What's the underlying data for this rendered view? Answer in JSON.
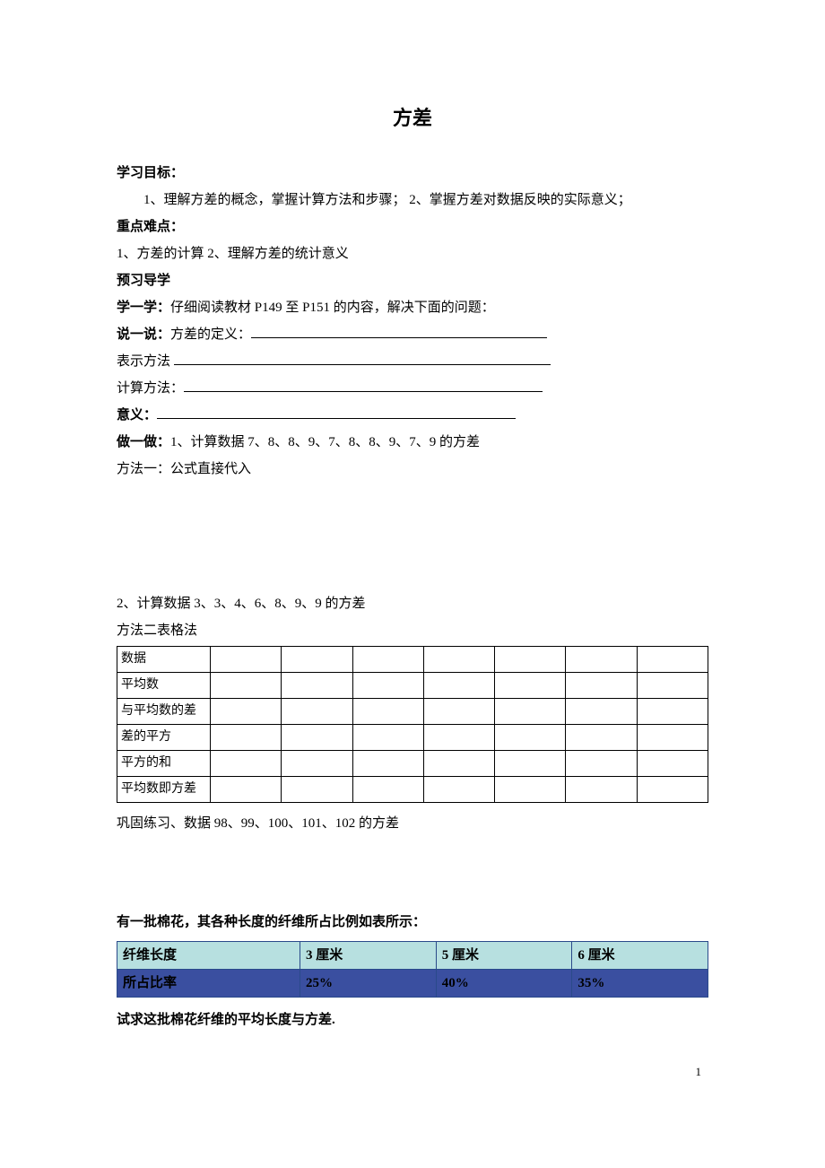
{
  "title": "方差",
  "sections": {
    "goal_label": "学习目标：",
    "goal_text": "1、理解方差的概念，掌握计算方法和步骤；  2、掌握方差对数据反映的实际意义；",
    "keypoint_label": "重点难点：",
    "keypoint_text": "1、方差的计算 2、理解方差的统计意义",
    "preview_label": "预习导学",
    "learn_label": "学一学：",
    "learn_text": "仔细阅读教材 P149 至 P151 的内容，解决下面的问题：",
    "say_label": "说一说：",
    "say_text": "方差的定义：",
    "method_label": "表示方法",
    "calc_label": "计算方法：",
    "meaning_label": "意义：",
    "do_label": "做一做：",
    "do_text": "1、计算数据 7、8、8、9、7、8、8、9、7、9 的方差",
    "method1": "方法一：公式直接代入",
    "ex2_text": "2、计算数据 3、3、4、6、8、9、9  的方差",
    "method2": "方法二表格法",
    "consolidate": "巩固练习、数据 98、99、100、101、102 的方差",
    "cotton_q": "有一批棉花，其各种长度的纤维所占比例如表所示：",
    "cotton_ask": "试求这批棉花纤维的平均长度与方差."
  },
  "blank_widths": {
    "say": 330,
    "method": 420,
    "calc": 400,
    "meaning": 400
  },
  "table1": {
    "rows": [
      "数据",
      "平均数",
      "与平均数的差",
      "差的平方",
      "平方的和",
      "平均数即方差"
    ],
    "cols": 7
  },
  "table2": {
    "header": [
      "纤维长度",
      "3 厘米",
      "5 厘米",
      "6 厘米"
    ],
    "data": [
      "所占比率",
      "25%",
      "40%",
      "35%"
    ]
  },
  "page_num": "1"
}
